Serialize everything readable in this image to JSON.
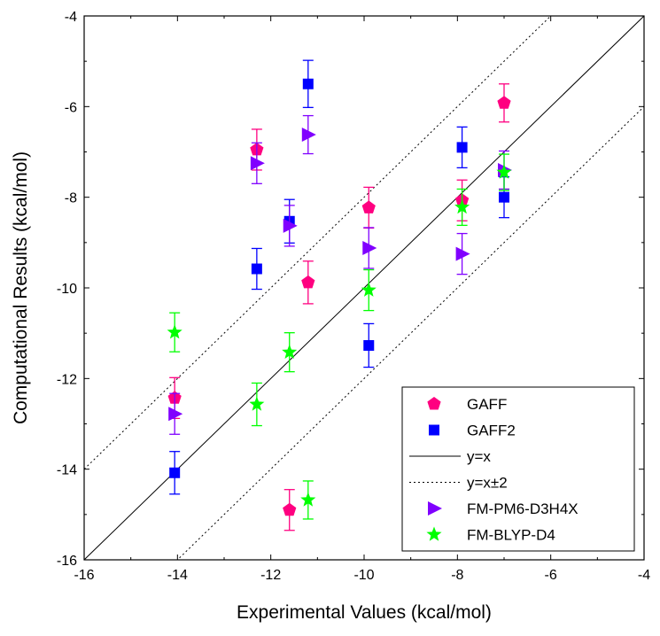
{
  "chart_data": {
    "type": "scatter",
    "title": "",
    "xlabel": "Experimental Values (kcal/mol)",
    "ylabel": "Computational Results (kcal/mol)",
    "xlim": [
      -16,
      -4
    ],
    "ylim": [
      -16,
      -4
    ],
    "xticks": [
      -16,
      -14,
      -12,
      -10,
      -8,
      -6,
      -4
    ],
    "yticks": [
      -16,
      -14,
      -12,
      -10,
      -8,
      -6,
      -4
    ],
    "xtick_labels": [
      "-16",
      "-14",
      "-12",
      "-10",
      "-8",
      "-6",
      "-4"
    ],
    "ytick_labels": [
      "-16",
      "-14",
      "-12",
      "-10",
      "-8",
      "-6",
      "-4"
    ],
    "grid": false,
    "legend_position": "bottom-right",
    "series": [
      {
        "name": "GAFF",
        "marker": "pentagon",
        "color": "#ff0080",
        "x": [
          -14.06,
          -12.3,
          -11.6,
          -11.2,
          -9.9,
          -7.9,
          -7.0
        ],
        "y": [
          -12.43,
          -6.95,
          -14.9,
          -9.88,
          -8.23,
          -8.07,
          -5.92
        ],
        "err": [
          0.45,
          0.45,
          0.45,
          0.47,
          0.45,
          0.45,
          0.42
        ]
      },
      {
        "name": "GAFF2",
        "marker": "square",
        "color": "#0000ff",
        "x": [
          -14.06,
          -12.3,
          -11.6,
          -11.2,
          -9.9,
          -7.9,
          -7.0
        ],
        "y": [
          -14.08,
          -9.58,
          -8.53,
          -5.5,
          -11.27,
          -6.9,
          -8.0
        ],
        "err": [
          0.47,
          0.45,
          0.48,
          0.52,
          0.48,
          0.45,
          0.45
        ]
      },
      {
        "name": "y=x",
        "type": "line",
        "style": "solid",
        "color": "#000000",
        "x": [
          -16,
          -4
        ],
        "y": [
          -16,
          -4
        ]
      },
      {
        "name": "y=x±2",
        "type": "line",
        "style": "dotted",
        "color": "#000000",
        "offsets": [
          2,
          -2
        ]
      },
      {
        "name": "FM-PM6-D3H4X",
        "marker": "triangle-right",
        "color": "#8000ff",
        "x": [
          -14.06,
          -12.3,
          -11.6,
          -11.2,
          -9.9,
          -7.9,
          -7.0
        ],
        "y": [
          -12.78,
          -7.25,
          -8.63,
          -6.62,
          -9.12,
          -9.25,
          -7.4
        ],
        "err": [
          0.45,
          0.45,
          0.45,
          0.42,
          0.45,
          0.45,
          0.42
        ]
      },
      {
        "name": "FM-BLYP-D4",
        "marker": "star",
        "color": "#00ff00",
        "x": [
          -14.06,
          -12.3,
          -11.6,
          -11.2,
          -9.9,
          -7.9,
          -7.0
        ],
        "y": [
          -10.98,
          -12.57,
          -11.42,
          -14.68,
          -10.05,
          -8.22,
          -7.45
        ],
        "err": [
          0.43,
          0.47,
          0.43,
          0.42,
          0.45,
          0.4,
          0.4
        ]
      }
    ]
  }
}
